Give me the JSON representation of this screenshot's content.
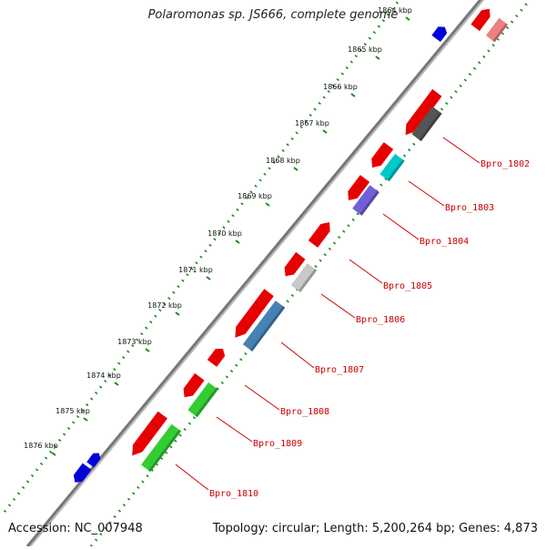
{
  "title": "Polaromonas sp. JS666, complete genome",
  "footer": {
    "accession": "Accession: NC_007948",
    "summary": "Topology: circular; Length: 5,200,264 bp; Genes: 4,873"
  },
  "ticks": [
    "1864 kbp",
    "1865 kbp",
    "1866 kbp",
    "1867 kbp",
    "1868 kbp",
    "1869 kbp",
    "1870 kbp",
    "1871 kbp",
    "1872 kbp",
    "1873 kbp",
    "1874 kbp",
    "1875 kbp",
    "1876 kbp"
  ],
  "genes": [
    "Bpro_1802",
    "Bpro_1803",
    "Bpro_1804",
    "Bpro_1805",
    "Bpro_1806",
    "Bpro_1807",
    "Bpro_1808",
    "Bpro_1809",
    "Bpro_1810"
  ],
  "colors": {
    "backbone": "#777777",
    "dots": "#1a8a1a",
    "red": "#e60000",
    "blue": "#0000dd",
    "pink": "#f08080",
    "darkgray": "#555555",
    "cyan": "#00c8c8",
    "purple": "#7060d8",
    "lightgray": "#c8c8c8",
    "steelblue": "#4682b4",
    "green": "#33cc33",
    "label": "#cc0000"
  }
}
